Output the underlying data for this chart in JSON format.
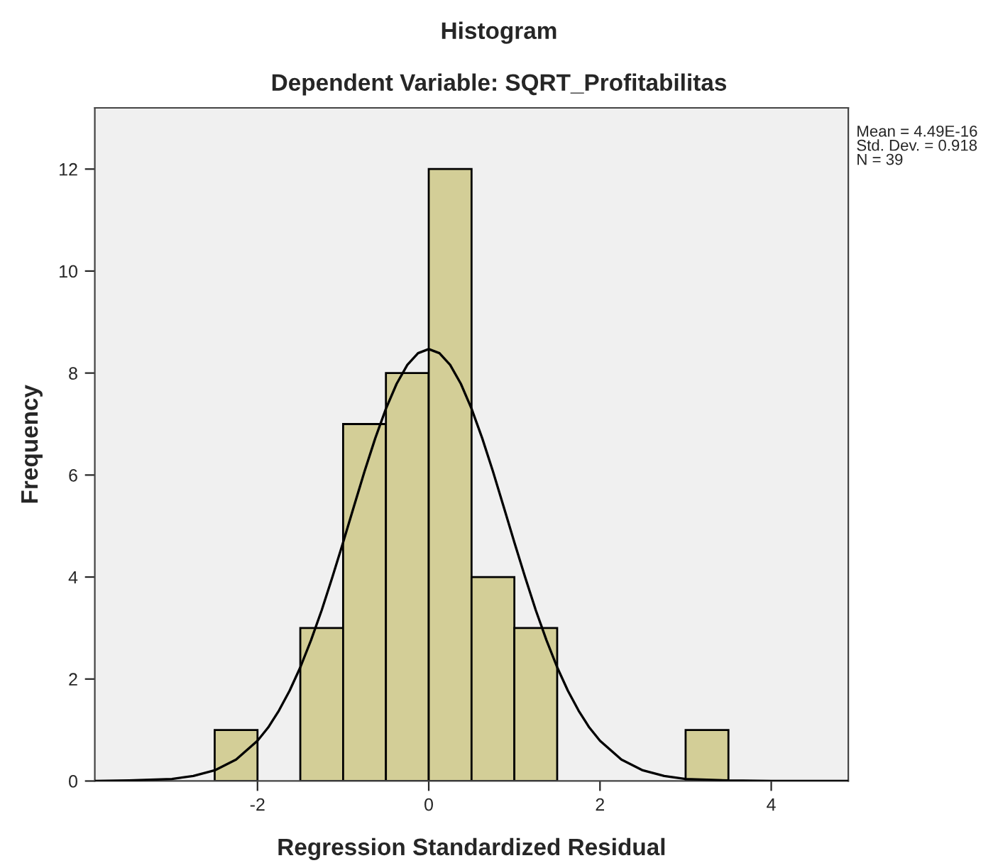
{
  "chart_data": {
    "type": "histogram",
    "title": "Histogram",
    "subtitle": "Dependent Variable: SQRT_Profitabilitas",
    "xlabel": "Regression Standardized Residual",
    "ylabel": "Frequency",
    "bins": [
      -2.5,
      -2,
      -1.5,
      -1,
      -0.5,
      0,
      0.5,
      1,
      1.5,
      2,
      2.5,
      3,
      3.5
    ],
    "values": [
      1,
      0,
      3,
      7,
      8,
      12,
      4,
      3,
      0,
      0,
      0,
      1
    ],
    "color": "#d3ce97",
    "series": [
      {
        "type": "line",
        "color": "#000000",
        "x": [
          -3.9,
          -3.5,
          -3,
          -2.75,
          -2.5,
          -2.25,
          -2,
          -1.875,
          -1.75,
          -1.625,
          -1.5,
          -1.375,
          -1.25,
          -1.125,
          -1,
          -0.875,
          -0.75,
          -0.625,
          -0.5,
          -0.375,
          -0.25,
          -0.125,
          0,
          0.125,
          0.25,
          0.375,
          0.5,
          0.625,
          0.75,
          0.875,
          1,
          1.125,
          1.25,
          1.375,
          1.5,
          1.625,
          1.75,
          1.875,
          2,
          2.25,
          2.5,
          2.75,
          3,
          3.5,
          4,
          4.9
        ],
        "values": [
          0,
          0.01,
          0.04,
          0.1,
          0.21,
          0.42,
          0.79,
          1.05,
          1.38,
          1.77,
          2.23,
          2.76,
          3.35,
          4.0,
          4.68,
          5.38,
          6.07,
          6.72,
          7.3,
          7.79,
          8.16,
          8.39,
          8.47,
          8.39,
          8.16,
          7.79,
          7.3,
          6.72,
          6.07,
          5.38,
          4.68,
          4.0,
          3.35,
          2.76,
          2.23,
          1.77,
          1.38,
          1.05,
          0.79,
          0.42,
          0.21,
          0.1,
          0.04,
          0.01,
          0,
          0
        ]
      }
    ],
    "xlim": [
      -3.9,
      4.9
    ],
    "xticks": [
      -2,
      0,
      2,
      4
    ],
    "ylim": [
      0,
      13.2
    ],
    "yticks": [
      0,
      2,
      4,
      6,
      8,
      10,
      12
    ],
    "annotations": [
      "Mean = 4.49E-16\nStd. Dev. = 0.918\nN = 39"
    ],
    "grid": false,
    "legend": false
  }
}
